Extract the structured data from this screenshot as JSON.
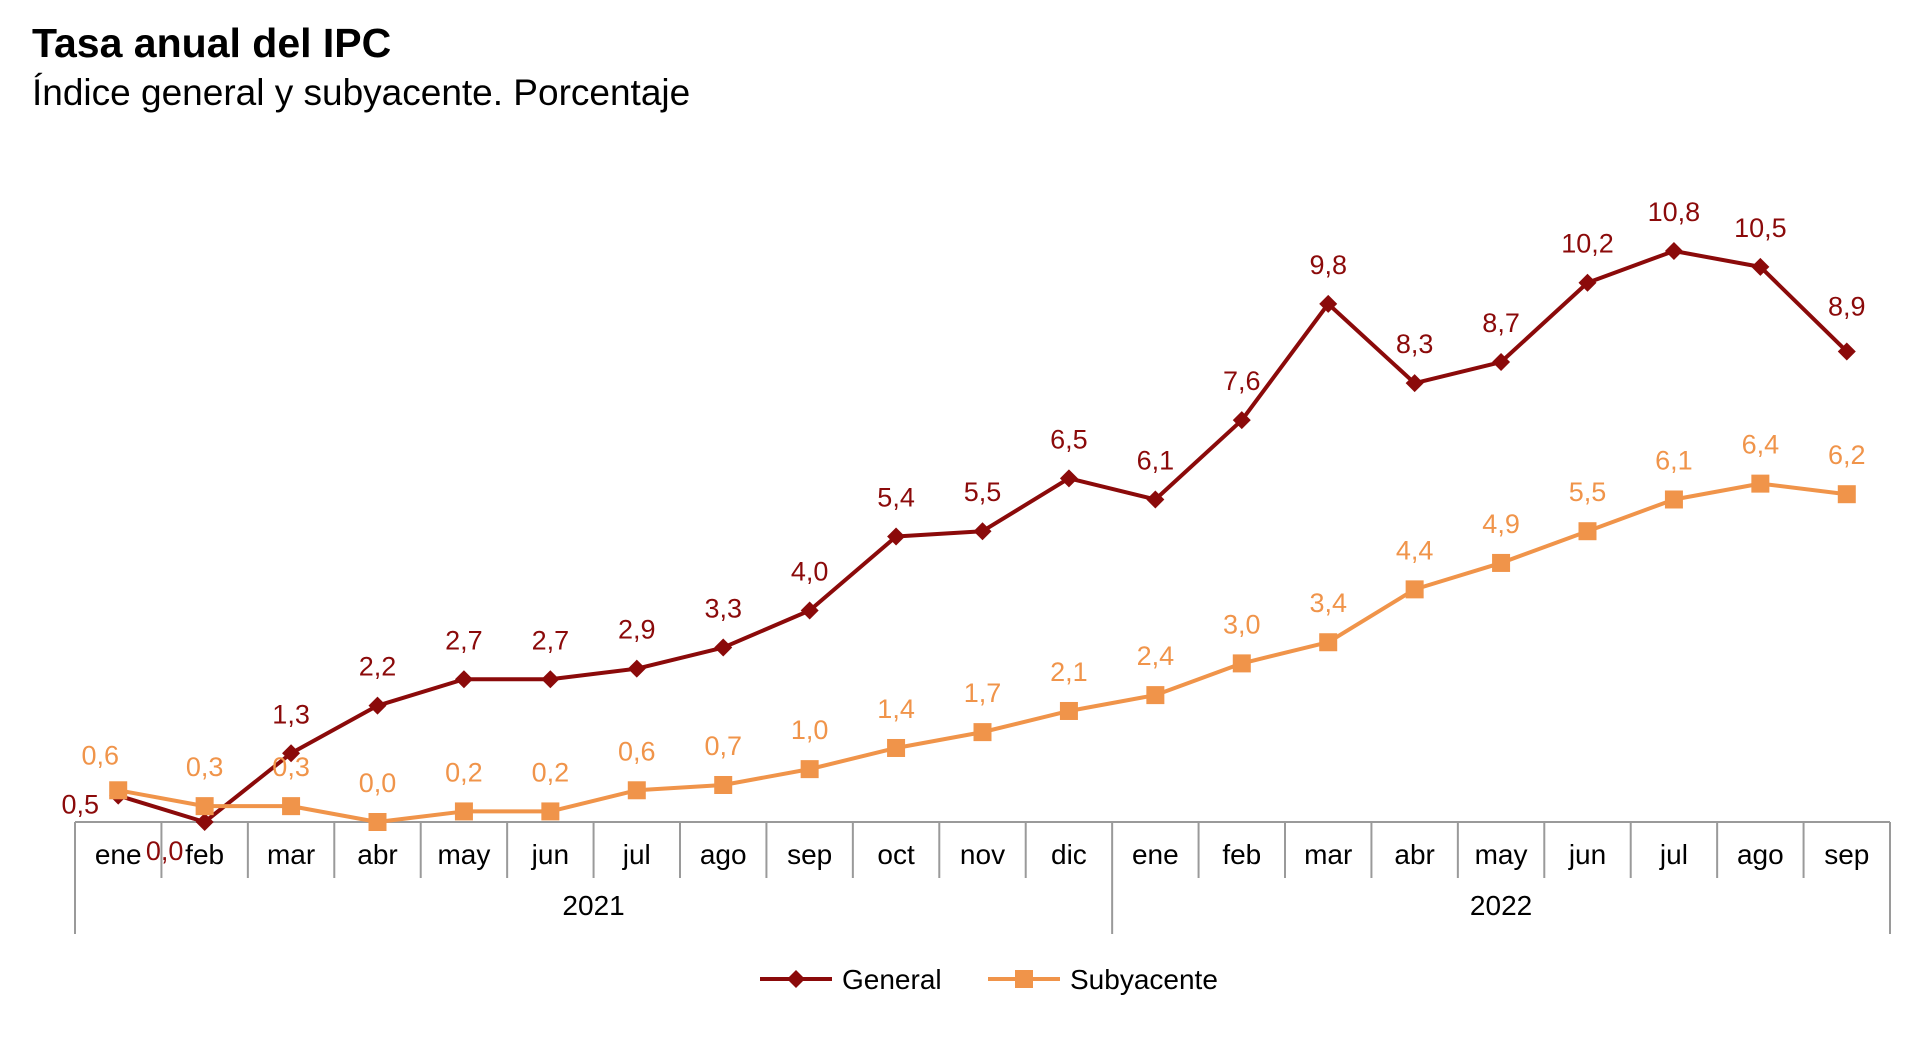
{
  "title": "Tasa anual del IPC",
  "subtitle": "Índice general y subyacente. Porcentaje",
  "chart_data": {
    "type": "line",
    "categories": [
      "ene",
      "feb",
      "mar",
      "abr",
      "may",
      "jun",
      "jul",
      "ago",
      "sep",
      "oct",
      "nov",
      "dic",
      "ene",
      "feb",
      "mar",
      "abr",
      "may",
      "jun",
      "jul",
      "ago",
      "sep"
    ],
    "year_groups": [
      {
        "label": "2021",
        "count": 12
      },
      {
        "label": "2022",
        "count": 9
      }
    ],
    "series": [
      {
        "name": "General",
        "color": "#8B0A0A",
        "marker": "diamond",
        "values": [
          0.5,
          0.0,
          1.3,
          2.2,
          2.7,
          2.7,
          2.9,
          3.3,
          4.0,
          5.4,
          5.5,
          6.5,
          6.1,
          7.6,
          9.8,
          8.3,
          8.7,
          10.2,
          10.8,
          10.5,
          8.9
        ],
        "labels": [
          "0,5",
          "0,0",
          "1,3",
          "2,2",
          "2,7",
          "2,7",
          "2,9",
          "3,3",
          "4,0",
          "5,4",
          "5,5",
          "6,5",
          "6,1",
          "7,6",
          "9,8",
          "8,3",
          "8,7",
          "10,2",
          "10,8",
          "10,5",
          "8,9"
        ]
      },
      {
        "name": "Subyacente",
        "color": "#F0944A",
        "marker": "square",
        "values": [
          0.6,
          0.3,
          0.3,
          0.0,
          0.2,
          0.2,
          0.6,
          0.7,
          1.0,
          1.4,
          1.7,
          2.1,
          2.4,
          3.0,
          3.4,
          4.4,
          4.9,
          5.5,
          6.1,
          6.4,
          6.2
        ],
        "labels": [
          "0,6",
          "0,3",
          "0,3",
          "0,0",
          "0,2",
          "0,2",
          "0,6",
          "0,7",
          "1,0",
          "1,4",
          "1,7",
          "2,1",
          "2,4",
          "3,0",
          "3,4",
          "4,4",
          "4,9",
          "5,5",
          "6,1",
          "6,4",
          "6,2"
        ]
      }
    ],
    "ylim": [
      0,
      11
    ],
    "grid": false,
    "legend": "bottom",
    "axis_color": "#9a9a9a"
  }
}
